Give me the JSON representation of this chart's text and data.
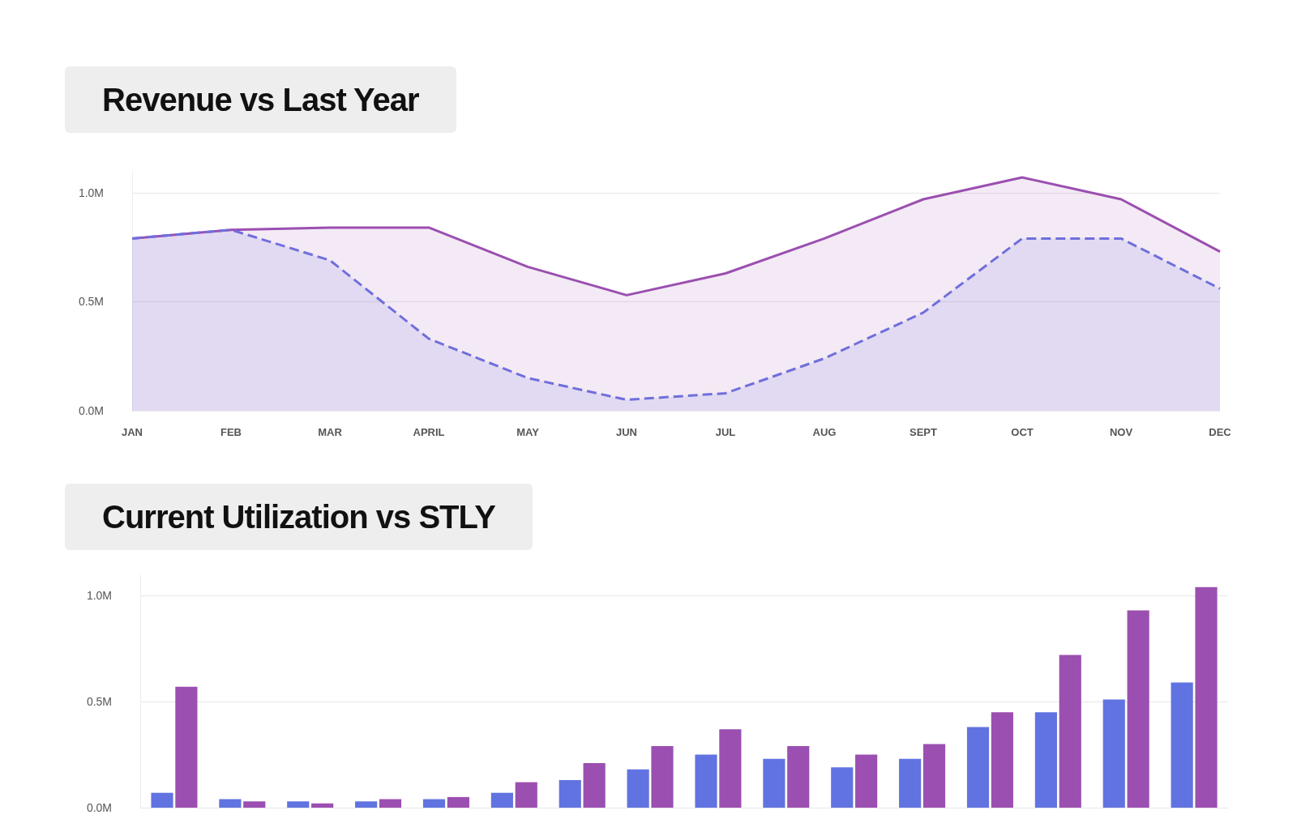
{
  "chart_data": [
    {
      "type": "area",
      "title": "Revenue vs Last Year",
      "categories": [
        "JAN",
        "FEB",
        "MAR",
        "APRIL",
        "MAY",
        "JUN",
        "JUL",
        "AUG",
        "SEPT",
        "OCT",
        "NOV",
        "DEC"
      ],
      "series": [
        {
          "color": "#9b4fb0",
          "line_style": "solid",
          "values": [
            0.79,
            0.83,
            0.84,
            0.84,
            0.66,
            0.53,
            0.63,
            0.79,
            0.97,
            1.07,
            0.97,
            0.73
          ]
        },
        {
          "color": "#6f6fdc",
          "line_style": "dashed",
          "values": [
            0.79,
            0.83,
            0.69,
            0.33,
            0.15,
            0.05,
            0.08,
            0.24,
            0.45,
            0.79,
            0.79,
            0.56
          ]
        }
      ],
      "ylim": [
        0,
        1.1
      ],
      "yticks": [
        {
          "value": 0,
          "label": "0.0M"
        },
        {
          "value": 0.5,
          "label": "0.5M"
        },
        {
          "value": 1,
          "label": "1.0M"
        }
      ],
      "grid": "y",
      "marker": "none"
    },
    {
      "type": "bar",
      "title": "Current Utilization vs STLY",
      "categories": [
        null,
        null,
        null,
        null,
        null,
        null,
        null,
        null,
        null,
        null,
        null,
        null,
        null,
        null,
        null,
        null
      ],
      "series": [
        {
          "color": "#6173e0",
          "values": [
            0.07,
            0.04,
            0.03,
            0.03,
            0.04,
            0.07,
            0.13,
            0.18,
            0.25,
            0.23,
            0.19,
            0.23,
            0.38,
            0.45,
            0.51,
            0.59
          ]
        },
        {
          "color": "#9b4fb0",
          "values": [
            0.57,
            0.03,
            0.02,
            0.04,
            0.05,
            0.12,
            0.21,
            0.29,
            0.37,
            0.29,
            0.25,
            0.3,
            0.45,
            0.72,
            0.93,
            1.04
          ]
        }
      ],
      "ylim": [
        0,
        1.1
      ],
      "yticks": [
        {
          "value": 0,
          "label": "0.0M"
        },
        {
          "value": 0.5,
          "label": "0.5M"
        },
        {
          "value": 1,
          "label": "1.0M"
        }
      ],
      "grid": "y"
    }
  ]
}
